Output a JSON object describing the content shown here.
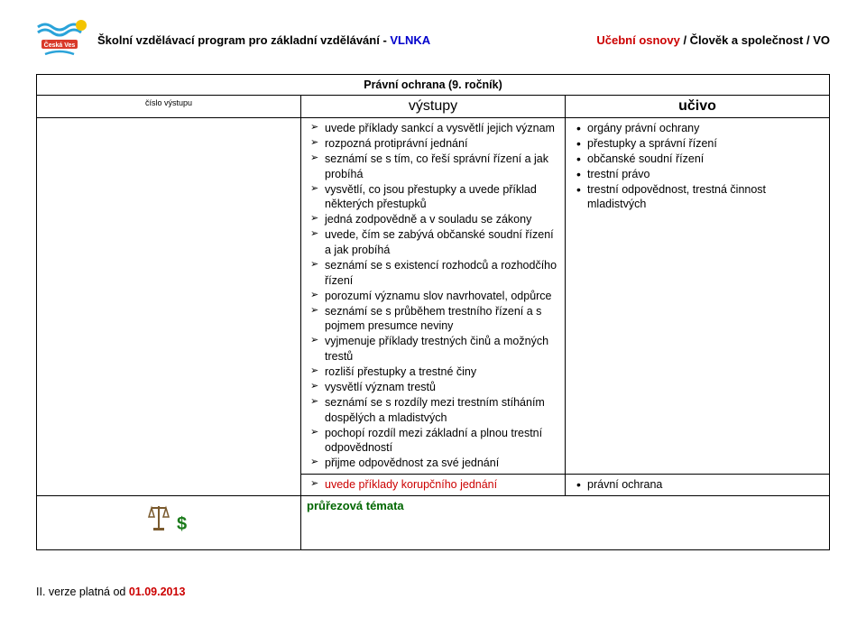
{
  "header": {
    "left_text_prefix": "Školní vzdělávací program pro základní vzdělávání - ",
    "vlnka": "VLNKA",
    "right_prefix": "Učební osnovy",
    "right_suffix": " / Člověk a společnost / VO"
  },
  "title": "Právní ochrana (9. ročník)",
  "columns": {
    "cislo": "číslo výstupu",
    "vystupy": "výstupy",
    "ucivo": "učivo"
  },
  "outcomes_block1": [
    "uvede příklady sankcí a vysvětlí jejich význam",
    "rozpozná protiprávní jednání",
    "seznámí se s tím, co řeší správní řízení a jak probíhá",
    "vysvětlí, co jsou přestupky a uvede příklad některých přestupků",
    "jedná zodpovědně a v souladu se zákony",
    "uvede, čím se zabývá občanské soudní řízení a jak probíhá",
    "seznámí se s existencí rozhodců a rozhodčího řízení",
    "porozumí významu slov navrhovatel, odpůrce",
    "seznámí se s průběhem trestního řízení a s pojmem presumce neviny",
    "vyjmenuje příklady trestných činů a možných trestů",
    "rozliší přestupky a trestné činy",
    "vysvětlí význam trestů",
    "seznámí se s rozdíly mezi trestním stíháním dospělých a mladistvých",
    "pochopí rozdíl mezi základní a plnou trestní odpovědností",
    "přijme odpovědnost za své jednání"
  ],
  "outcomes_block2_text": "uvede příklady korupčního jednání",
  "ucivo_block1": [
    "orgány právní ochrany",
    "přestupky a správní řízení",
    "občanské soudní řízení",
    "trestní právo",
    "trestní odpovědnost, trestná činnost mladistvých"
  ],
  "ucivo_block2": "právní ochrana",
  "prurezova": "průřezová témata",
  "footer_prefix": "II. verze platná od ",
  "footer_date": "01.09.2013"
}
